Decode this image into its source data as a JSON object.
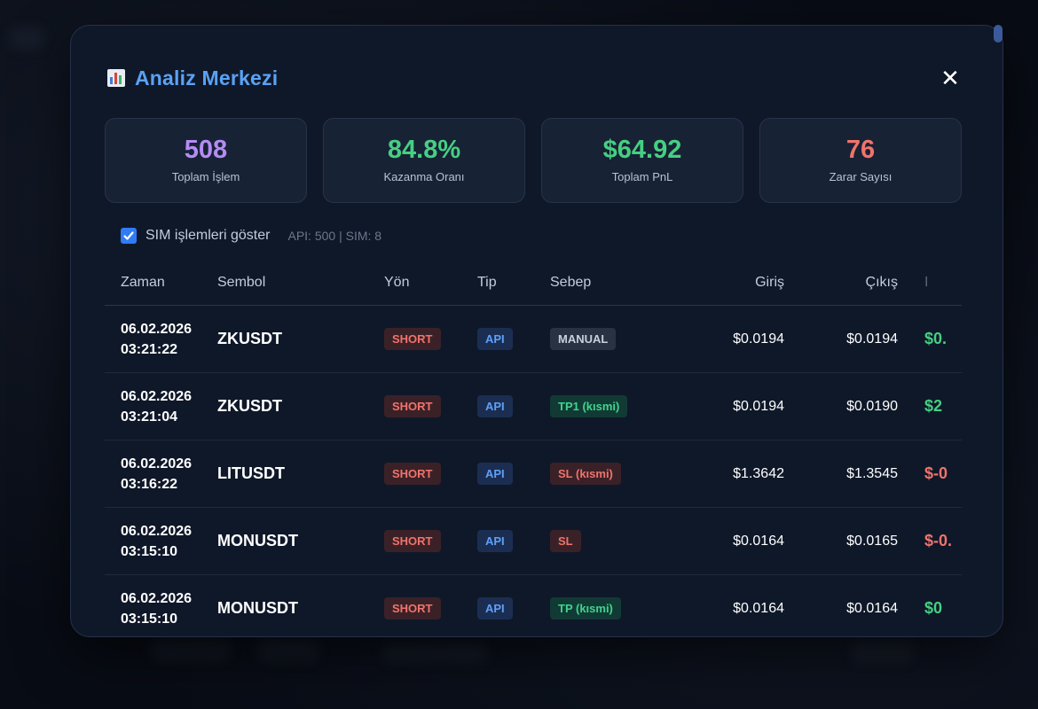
{
  "modal": {
    "title": "Analiz Merkezi",
    "close_label": "✕"
  },
  "stats": [
    {
      "value": "508",
      "label": "Toplam İşlem",
      "color": "#b48cf4"
    },
    {
      "value": "84.8%",
      "label": "Kazanma Oranı",
      "color": "#46cf82"
    },
    {
      "value": "$64.92",
      "label": "Toplam PnL",
      "color": "#46cf82"
    },
    {
      "value": "76",
      "label": "Zarar Sayısı",
      "color": "#f0736b"
    }
  ],
  "sim_filter": {
    "checked": true,
    "label": "SIM işlemleri göster",
    "counts": "API: 500 | SIM: 8"
  },
  "table": {
    "headers": {
      "time": "Zaman",
      "symbol": "Sembol",
      "direction": "Yön",
      "type": "Tip",
      "reason": "Sebep",
      "entry": "Giriş",
      "exit": "Çıkış",
      "pnl": "I"
    },
    "rows": [
      {
        "date": "06.02.2026",
        "time": "03:21:22",
        "symbol": "ZKUSDT",
        "direction": "SHORT",
        "type": "API",
        "reason": "MANUAL",
        "reason_kind": "manual",
        "entry": "$0.0194",
        "exit": "$0.0194",
        "pnl": "$0.",
        "pnl_color": "#46cf82"
      },
      {
        "date": "06.02.2026",
        "time": "03:21:04",
        "symbol": "ZKUSDT",
        "direction": "SHORT",
        "type": "API",
        "reason": "TP1 (kısmi)",
        "reason_kind": "tp",
        "entry": "$0.0194",
        "exit": "$0.0190",
        "pnl": "$2",
        "pnl_color": "#46cf82"
      },
      {
        "date": "06.02.2026",
        "time": "03:16:22",
        "symbol": "LITUSDT",
        "direction": "SHORT",
        "type": "API",
        "reason": "SL (kısmi)",
        "reason_kind": "sl",
        "entry": "$1.3642",
        "exit": "$1.3545",
        "pnl": "$-0",
        "pnl_color": "#f0736b"
      },
      {
        "date": "06.02.2026",
        "time": "03:15:10",
        "symbol": "MONUSDT",
        "direction": "SHORT",
        "type": "API",
        "reason": "SL",
        "reason_kind": "sl",
        "entry": "$0.0164",
        "exit": "$0.0165",
        "pnl": "$-0.",
        "pnl_color": "#f0736b"
      },
      {
        "date": "06.02.2026",
        "time": "03:15:10",
        "symbol": "MONUSDT",
        "direction": "SHORT",
        "type": "API",
        "reason": "TP (kısmi)",
        "reason_kind": "tp",
        "entry": "$0.0164",
        "exit": "$0.0164",
        "pnl": "$0",
        "pnl_color": "#46cf82"
      }
    ]
  }
}
